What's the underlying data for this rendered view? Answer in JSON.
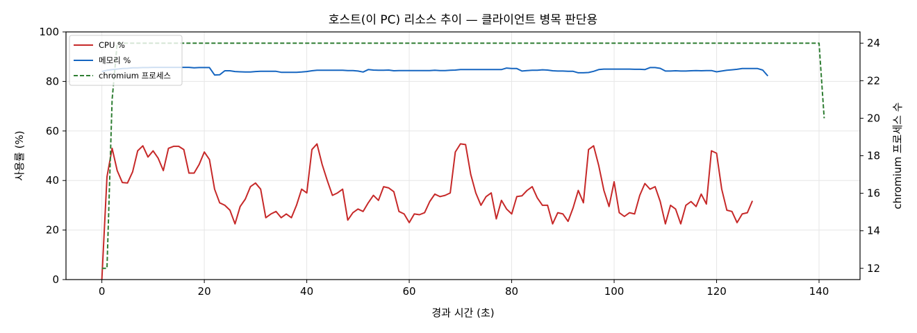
{
  "chart_data": {
    "type": "line",
    "title": "호스트(이 PC) 리소스 추이 — 클라이언트 병목 판단용",
    "xlabel": "경과 시간 (초)",
    "ylabel": "사용률 (%)",
    "y2label": "chromium 프로세스 수",
    "xlim": [
      -7,
      148
    ],
    "ylim": [
      0,
      100
    ],
    "y2lim": [
      11.4,
      24.6
    ],
    "xticks": [
      0,
      20,
      40,
      60,
      80,
      100,
      120,
      140
    ],
    "yticks": [
      0,
      20,
      40,
      60,
      80,
      100
    ],
    "y2ticks": [
      12,
      14,
      16,
      18,
      20,
      22,
      24
    ],
    "grid": true,
    "legend_position": "top-left",
    "series": [
      {
        "name": "CPU %",
        "axis": "left",
        "color": "#c62828",
        "style": "solid",
        "values": [
          0,
          41.5,
          53,
          44,
          39.2,
          39,
          43.5,
          52,
          54,
          49.5,
          52,
          49,
          44,
          53,
          53.8,
          53.8,
          52.5,
          43,
          43,
          46.5,
          51.5,
          48.5,
          36.5,
          31,
          30,
          28,
          22.5,
          29.5,
          32.5,
          37.5,
          39,
          36.5,
          25,
          26.5,
          27.5,
          25,
          26.5,
          25,
          30,
          36.5,
          35,
          52.5,
          54.8,
          46.5,
          40,
          34,
          35,
          36.5,
          24,
          27,
          28.5,
          27.5,
          31,
          34,
          32,
          37.5,
          37,
          35.5,
          27.5,
          26.5,
          23,
          26.5,
          26.2,
          27,
          31.5,
          34.5,
          33.5,
          34,
          35,
          51.5,
          54.8,
          54.5,
          42.5,
          35,
          30,
          33.5,
          35,
          24.5,
          32,
          28.5,
          26.5,
          33.5,
          33.8,
          36,
          37.5,
          33,
          30,
          30,
          22.5,
          27,
          26.5,
          23.5,
          29,
          36,
          31,
          52.5,
          54,
          46,
          36,
          29.5,
          39.5,
          27,
          25.5,
          27,
          26.5,
          34,
          38.8,
          36.5,
          37.5,
          31.5,
          22.5,
          30,
          28.5,
          22.5,
          30,
          31.5,
          29.5,
          34.5,
          30.5,
          52,
          51,
          36.5,
          28,
          27.5,
          23,
          26.5,
          27,
          31.8
        ]
      },
      {
        "name": "메모리 %",
        "axis": "left",
        "color": "#1565c0",
        "style": "solid",
        "values": [
          84,
          84.5,
          84.8,
          85,
          85.2,
          85.3,
          85.5,
          85.5,
          85.6,
          85.6,
          85.7,
          85.7,
          85.7,
          85.7,
          85.7,
          85.7,
          85.7,
          85.7,
          85.5,
          85.6,
          85.6,
          85.6,
          82.6,
          82.7,
          84.3,
          84.3,
          84,
          83.9,
          83.8,
          83.8,
          84,
          84.1,
          84.1,
          84.1,
          84.1,
          83.7,
          83.7,
          83.7,
          83.7,
          83.8,
          84,
          84.3,
          84.5,
          84.5,
          84.5,
          84.5,
          84.5,
          84.5,
          84.4,
          84.4,
          84.2,
          83.8,
          84.8,
          84.6,
          84.5,
          84.5,
          84.6,
          84.3,
          84.4,
          84.4,
          84.4,
          84.4,
          84.4,
          84.4,
          84.4,
          84.5,
          84.4,
          84.4,
          84.5,
          84.6,
          84.8,
          84.8,
          84.8,
          84.8,
          84.8,
          84.8,
          84.8,
          84.8,
          84.8,
          85.4,
          85.2,
          85.2,
          84.2,
          84.4,
          84.5,
          84.5,
          84.7,
          84.6,
          84.3,
          84.2,
          84.2,
          84.1,
          84.1,
          83.5,
          83.5,
          83.6,
          84.1,
          84.8,
          85,
          85,
          85,
          85,
          85,
          85,
          84.9,
          84.9,
          84.8,
          85.6,
          85.6,
          85.3,
          84.2,
          84.2,
          84.3,
          84.2,
          84.2,
          84.3,
          84.4,
          84.3,
          84.4,
          84.4,
          83.9,
          84.2,
          84.5,
          84.7,
          84.9,
          85.2,
          85.2,
          85.2,
          85.2,
          84.6,
          82.2
        ]
      },
      {
        "name": "chromium 프로세스 수",
        "axis": "right",
        "color": "#2e7d32",
        "style": "dashed",
        "x": [
          0,
          0.5,
          1,
          2,
          3,
          140,
          141
        ],
        "values": [
          12,
          12,
          12,
          21,
          24,
          24,
          20
        ]
      }
    ],
    "legend": [
      "CPU %",
      "메모리 %",
      "chromium 프로세스"
    ]
  }
}
